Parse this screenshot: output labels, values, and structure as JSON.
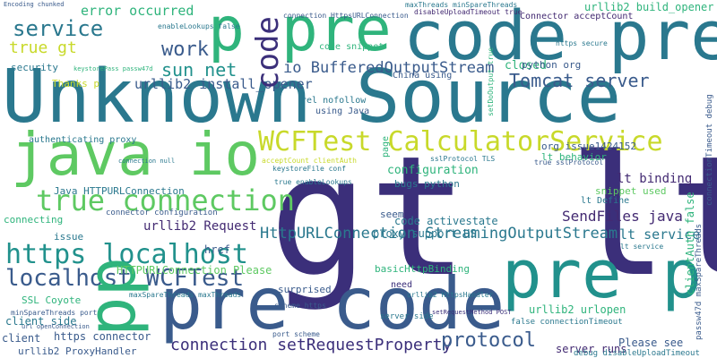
{
  "palette": {
    "navy": "#3b2f7a",
    "purple": "#432a72",
    "blue": "#3a5b8c",
    "teal": "#2a788e",
    "sea": "#21918c",
    "green": "#2fb47c",
    "lime": "#5ec962",
    "yellow": "#c8d92a"
  },
  "words": [
    "gt lt",
    "Unknown Source",
    "pre code",
    "code pre",
    "pre p",
    "java io",
    "p pre",
    "WCFTest CalculatorService",
    "true connection",
    "https localhost",
    "localhost WCFTest",
    "HttpURLConnection StreamingOutputStream",
    "connection setRequestProperty",
    "protocol",
    "Tomcat server",
    "io BufferedOutputStream",
    "service",
    "work",
    "sun net",
    "true gt",
    "error occurred",
    "urllib2 install_opener",
    "SendFiles java",
    "lt service",
    "urllib2 build_opener",
    "Connector acceptCount",
    "code",
    "pp",
    "lt binding",
    "closed",
    "configuration",
    "code activestate",
    "urllib2 Request",
    "proxy support US",
    "basicHttpBinding",
    "HTTPURLConnection Please",
    "urllib2 urlopen",
    "Please see",
    "server runs",
    "urllib2 ProxyHandler",
    "client",
    "SSL Coyote",
    "client side",
    "https connector",
    "surprised",
    "Java HTTPURLConnection",
    "connecting",
    "authenticating proxy",
    "python org",
    "security",
    "Thanks p",
    "issue",
    "href",
    "need",
    "seem",
    "lt behavior",
    "snippet used",
    "lt Define",
    "org issue1424152",
    "using Java",
    "China using",
    "rel nofollow",
    "code snippet",
    "maxThreads minSpareThreads",
    "disableUploadTimeout true",
    "bugs python",
    "page",
    "enableLookups false",
    "Encoding chunked",
    "connection HttpsURLConnection",
    "keystorePass passw47d",
    "setDoOutput true",
    "connector configuration",
    "keystoreFile conf",
    "server side",
    "sslProtocol TLS",
    "acceptCount clientAuth",
    "true enableLookups",
    "https secure",
    "connection null",
    "clientAuth false",
    "passw47d maxSpareThreads",
    "connectionTimeout debug",
    "debug disableUploadTimeout",
    "false connectionTimeout",
    "scheme https",
    "port scheme",
    "urllib2 HttpsHandler",
    "setRequestMethod POST",
    "maxSpareThreads maxThreads",
    "minSpareThreads port",
    "url openConnection",
    "lt service",
    "true sslProtocol"
  ]
}
